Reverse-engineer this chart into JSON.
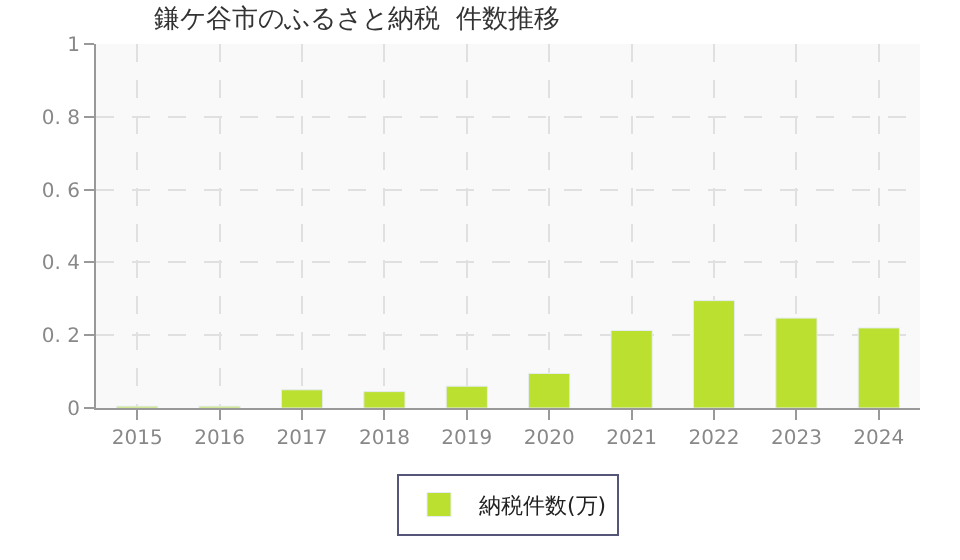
{
  "chart_data": {
    "type": "bar",
    "title": "鎌ケ谷市のふるさと納税  件数推移",
    "categories": [
      "2015",
      "2016",
      "2017",
      "2018",
      "2019",
      "2020",
      "2021",
      "2022",
      "2023",
      "2024"
    ],
    "series": [
      {
        "name": "納税件数(万)",
        "color": "#bbe02f",
        "values": [
          0.005,
          0.005,
          0.05,
          0.045,
          0.06,
          0.095,
          0.213,
          0.295,
          0.247,
          0.22
        ]
      }
    ],
    "ylim": [
      0,
      1
    ],
    "yticks": [
      0,
      0.2,
      0.4,
      0.6,
      0.8,
      1
    ],
    "grid": true,
    "legend": "bottom"
  }
}
